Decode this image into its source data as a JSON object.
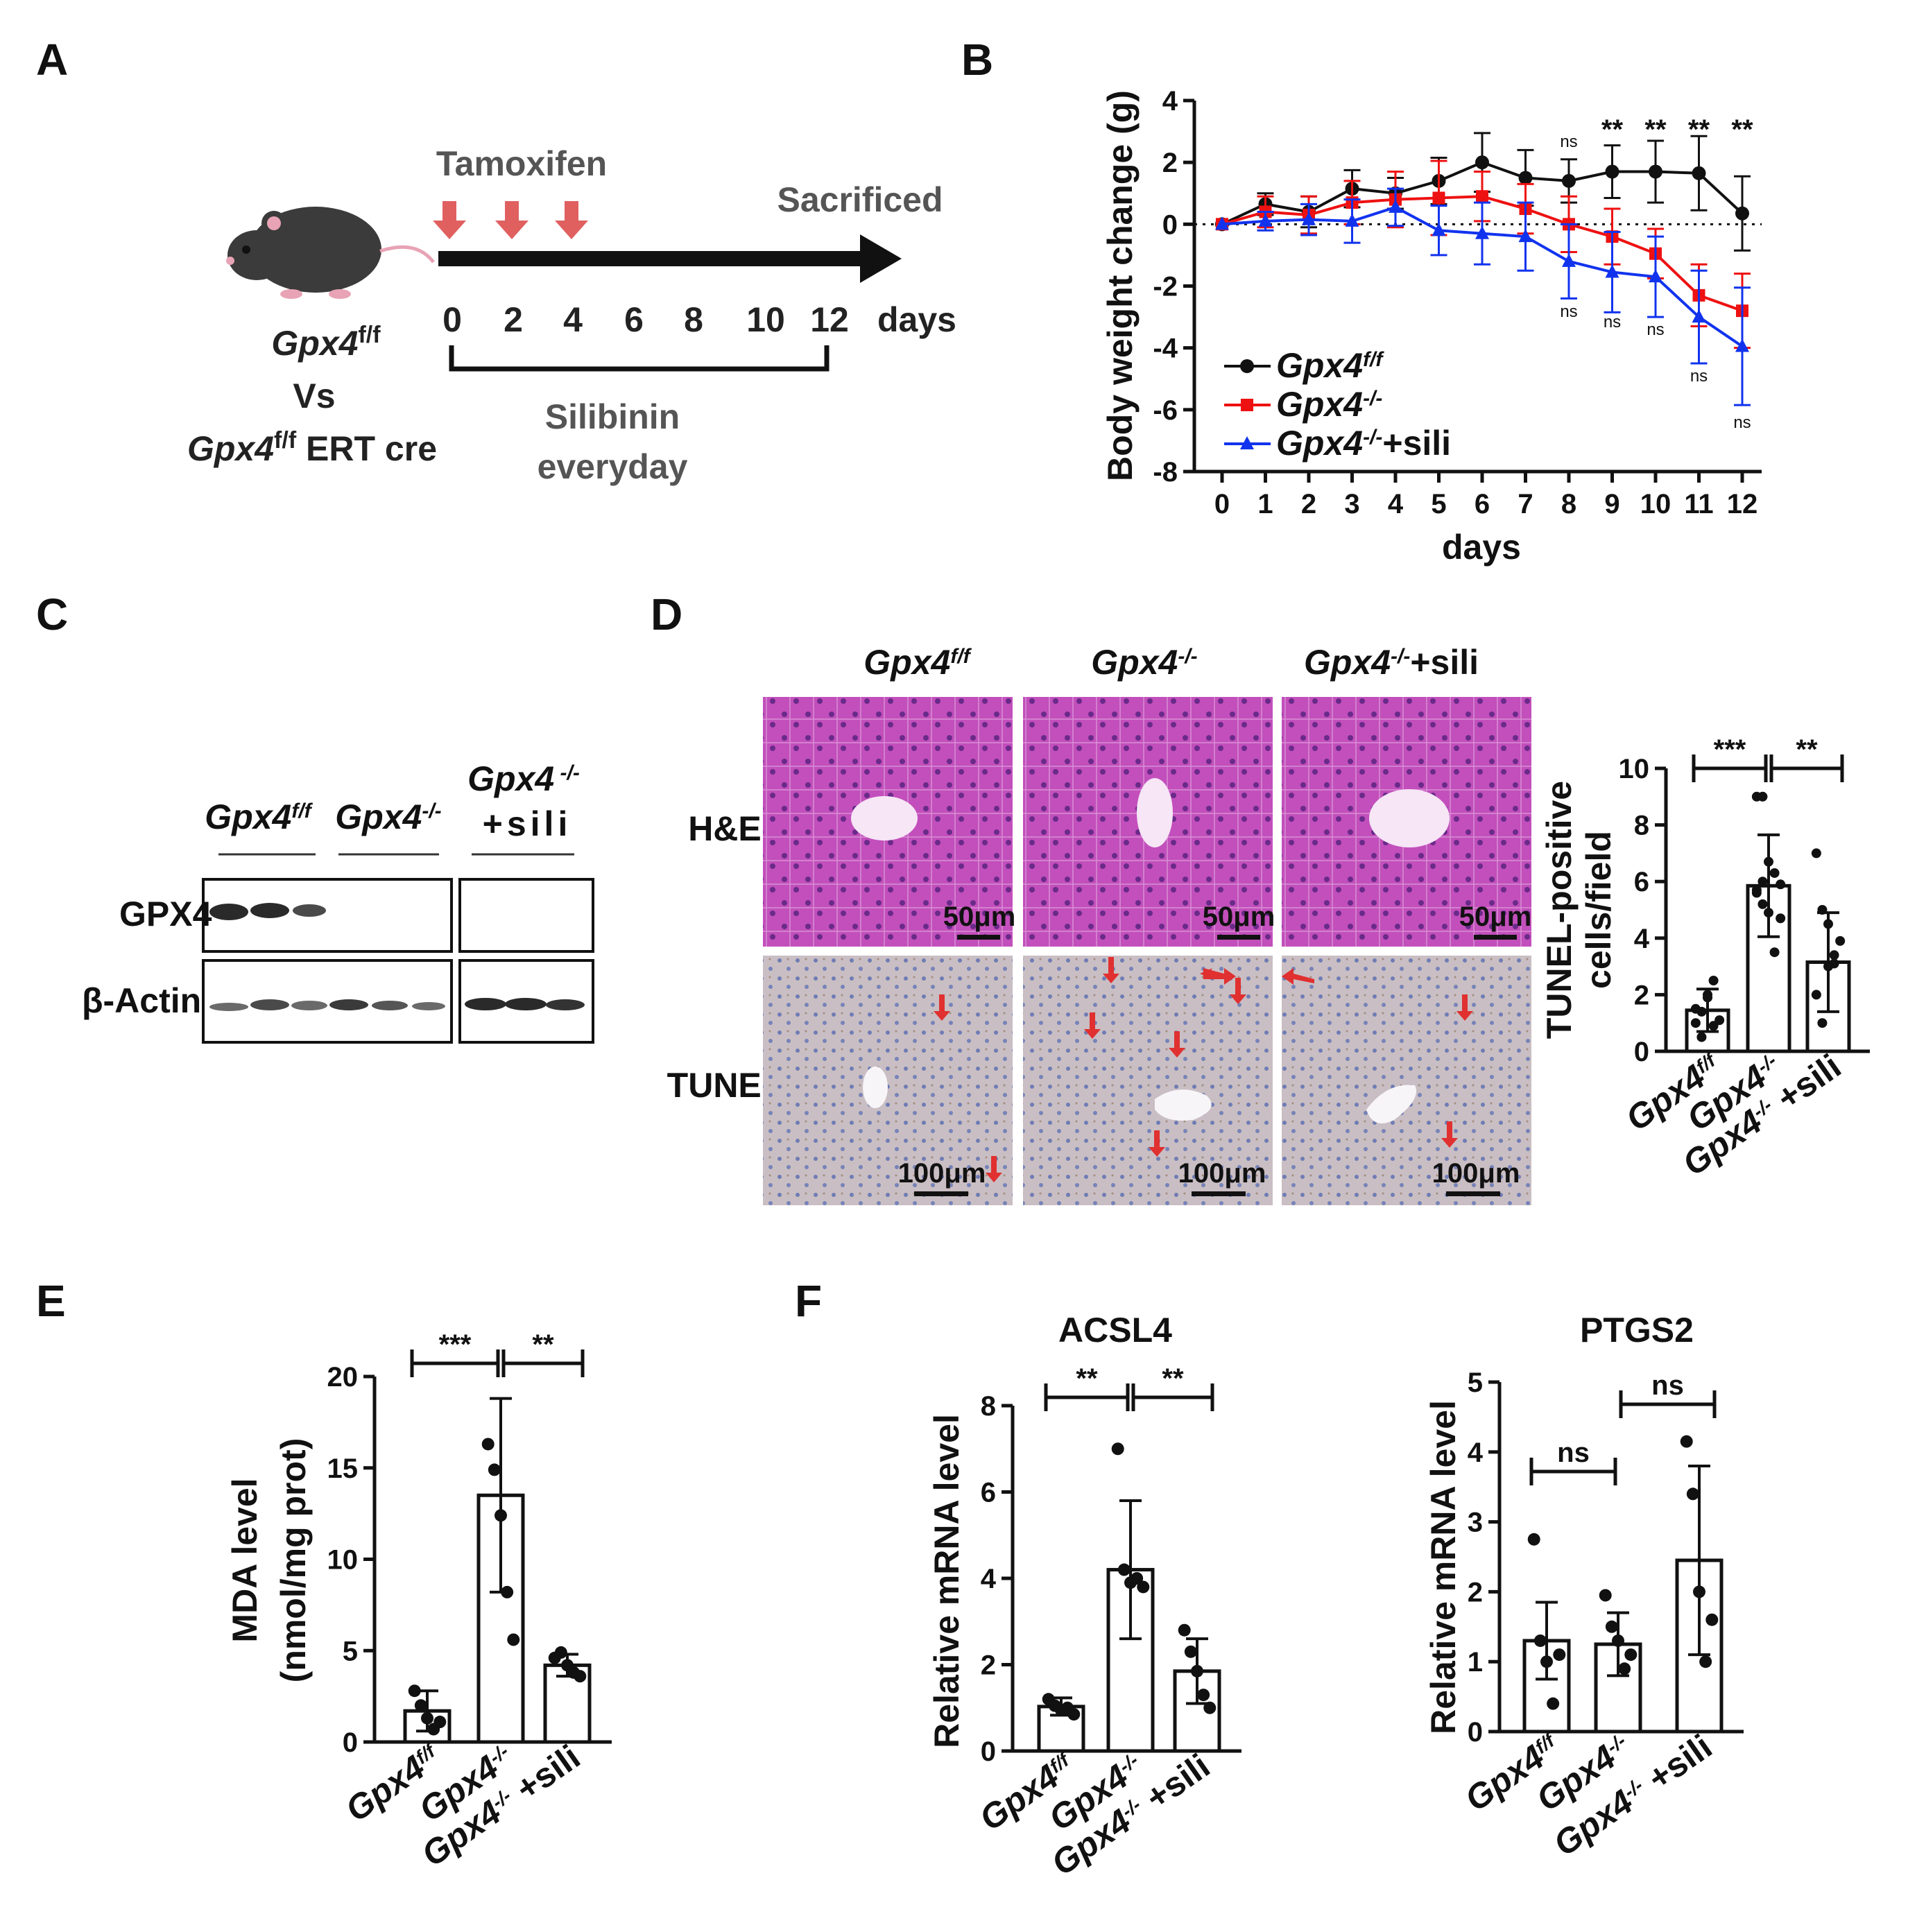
{
  "panel_letters": [
    "A",
    "B",
    "C",
    "D",
    "E",
    "F"
  ],
  "colors": {
    "black": "#111111",
    "red": "#ee1111",
    "blue": "#1133ee",
    "arrow_red": "#e03030",
    "he_bg": "#c04ab8",
    "tunel_bg": "#c8bfc6"
  },
  "schematic": {
    "mouse_icon": "mouse-icon",
    "tamoxifen": "Tamoxifen",
    "sacrificed": "Sacrificed",
    "days_ticks": [
      "0",
      "2",
      "4",
      "6",
      "8",
      "10",
      "12"
    ],
    "days_word": "days",
    "silibinin_1": "Silibinin",
    "silibinin_2": "everyday",
    "geno_1_main": "Gpx4",
    "geno_1_sup": "f/f",
    "vs": "Vs",
    "geno_2_main": "Gpx4",
    "geno_2_sup": "f/f",
    "geno_2_suffix": " ERT cre"
  },
  "western": {
    "labels": [
      {
        "main": "Gpx4",
        "sup": "f/f",
        "suffix": ""
      },
      {
        "main": "Gpx4",
        "sup": "-/-",
        "suffix": ""
      },
      {
        "main": "Gpx4",
        "sup": " -/-",
        "suffix": ""
      }
    ],
    "label_sili": "+sili",
    "row_gpx4": "GPX4",
    "row_actin": "β-Actin"
  },
  "histology": {
    "col_headers": [
      {
        "main": "Gpx4",
        "sup": "f/f",
        "suffix": ""
      },
      {
        "main": "Gpx4",
        "sup": "-/-",
        "suffix": ""
      },
      {
        "main": "Gpx4",
        "sup": "-/-",
        "suffix": "+sili"
      }
    ],
    "row_he": "H&E",
    "row_tunel": "TUNEL",
    "scale_he": "50μm",
    "scale_tunel": "100μm"
  },
  "legend": [
    {
      "main": "Gpx4",
      "sup": "f/f",
      "suffix": ""
    },
    {
      "main": "Gpx4",
      "sup": "-/-",
      "suffix": ""
    },
    {
      "main": "Gpx4",
      "sup": "-/-",
      "suffix": "+sili"
    }
  ],
  "group_labels": [
    {
      "main": "Gpx4",
      "sup": "f/f",
      "suffix": ""
    },
    {
      "main": "Gpx4",
      "sup": "-/-",
      "suffix": ""
    },
    {
      "main": "Gpx4",
      "sup": "-/-",
      "suffix": " +sili"
    }
  ],
  "chart_data": [
    {
      "id": "B",
      "type": "line",
      "xlabel": "days",
      "ylabel": "Body weight change (g)",
      "x": [
        0,
        1,
        2,
        3,
        4,
        5,
        6,
        7,
        8,
        9,
        10,
        11,
        12
      ],
      "ylim": [
        -8,
        4
      ],
      "yticks": [
        -8,
        -6,
        -4,
        -2,
        0,
        2,
        4
      ],
      "series": [
        {
          "name": "Gpx4f/f",
          "color": "#111111",
          "marker": "circle",
          "values": [
            0,
            0.65,
            0.4,
            1.15,
            1.0,
            1.4,
            2.0,
            1.5,
            1.4,
            1.7,
            1.7,
            1.65,
            0.35
          ],
          "errors": [
            0,
            0.35,
            0.5,
            0.6,
            0.5,
            0.75,
            0.95,
            0.9,
            0.7,
            0.85,
            1.0,
            1.2,
            1.2
          ]
        },
        {
          "name": "Gpx4-/-",
          "color": "#ee1111",
          "marker": "square",
          "values": [
            0,
            0.4,
            0.3,
            0.7,
            0.8,
            0.85,
            0.9,
            0.5,
            0.0,
            -0.4,
            -0.95,
            -2.3,
            -2.8
          ],
          "errors": [
            0,
            0.5,
            0.6,
            0.7,
            0.9,
            1.2,
            0.8,
            0.8,
            0.9,
            0.9,
            0.8,
            1.0,
            1.2
          ]
        },
        {
          "name": "Gpx4-/-+sili",
          "color": "#1133ee",
          "marker": "triangle",
          "values": [
            0,
            0.1,
            0.15,
            0.1,
            0.55,
            -0.2,
            -0.3,
            -0.4,
            -1.2,
            -1.55,
            -1.7,
            -3.0,
            -3.95
          ],
          "errors": [
            0,
            0.3,
            0.5,
            0.7,
            0.6,
            0.8,
            1.0,
            1.1,
            1.2,
            1.3,
            1.3,
            1.5,
            1.9
          ]
        }
      ],
      "annotations_top": [
        {
          "x": 8,
          "text": "ns"
        },
        {
          "x": 9,
          "text": "**"
        },
        {
          "x": 10,
          "text": "**"
        },
        {
          "x": 11,
          "text": "**"
        },
        {
          "x": 12,
          "text": "**"
        }
      ],
      "annotations_bottom": [
        {
          "x": 8,
          "text": "ns"
        },
        {
          "x": 9,
          "text": "ns"
        },
        {
          "x": 10,
          "text": "ns"
        },
        {
          "x": 11,
          "text": "ns"
        },
        {
          "x": 12,
          "text": "ns"
        }
      ]
    },
    {
      "id": "D-bar",
      "type": "bar",
      "ylabel_1": "TUNEL-positive",
      "ylabel_2": "cells/field",
      "ylim": [
        0,
        10
      ],
      "yticks": [
        0,
        2,
        4,
        6,
        8,
        10
      ],
      "values": [
        1.45,
        5.85,
        3.15
      ],
      "errors": [
        0.75,
        1.8,
        1.75
      ],
      "points": [
        [
          1.0,
          1.4,
          2.0,
          2.5,
          1.1,
          1.5,
          0.5,
          1.9,
          0.9
        ],
        [
          9.0,
          9.0,
          6.7,
          6.3,
          5.9,
          5.6,
          5.2,
          4.9,
          3.5,
          4.7,
          5.7,
          6.0
        ],
        [
          7.0,
          5.0,
          4.5,
          3.1,
          3.9,
          2.0,
          1.0,
          3.0,
          3.4
        ]
      ],
      "significance": [
        {
          "from": 0,
          "to": 1,
          "text": "***"
        },
        {
          "from": 1,
          "to": 2,
          "text": "**"
        }
      ]
    },
    {
      "id": "E",
      "type": "bar",
      "ylabel_1": "MDA level",
      "ylabel_2": "(nmol/mg prot)",
      "ylim": [
        0,
        20
      ],
      "yticks": [
        0,
        5,
        10,
        15,
        20
      ],
      "values": [
        1.7,
        13.5,
        4.2
      ],
      "errors": [
        1.1,
        5.3,
        0.6
      ],
      "points": [
        [
          2.8,
          2.0,
          1.3,
          0.7,
          1.1
        ],
        [
          16.3,
          14.9,
          12.4,
          8.2,
          5.6
        ],
        [
          4.6,
          4.9,
          4.2,
          3.8,
          3.6
        ]
      ],
      "significance": [
        {
          "from": 0,
          "to": 1,
          "text": "***"
        },
        {
          "from": 1,
          "to": 2,
          "text": "**"
        }
      ]
    },
    {
      "id": "F-ACSL4",
      "type": "bar",
      "title": "ACSL4",
      "ylabel": "Relative mRNA level",
      "ylim": [
        0,
        8
      ],
      "yticks": [
        0,
        2,
        4,
        6,
        8
      ],
      "values": [
        1.03,
        4.2,
        1.85
      ],
      "errors": [
        0.2,
        1.6,
        0.75
      ],
      "points": [
        [
          1.2,
          1.05,
          0.95,
          1.0,
          0.85
        ],
        [
          7.0,
          4.2,
          3.9,
          4.0,
          3.8
        ],
        [
          2.8,
          2.3,
          1.85,
          1.3,
          1.0
        ]
      ],
      "significance": [
        {
          "from": 0,
          "to": 1,
          "text": "**"
        },
        {
          "from": 1,
          "to": 2,
          "text": "**"
        }
      ]
    },
    {
      "id": "F-PTGS2",
      "type": "bar",
      "title": "PTGS2",
      "ylabel": "Relative mRNA level",
      "ylim": [
        0,
        5
      ],
      "yticks": [
        0,
        1,
        2,
        3,
        4,
        5
      ],
      "values": [
        1.3,
        1.25,
        2.45
      ],
      "errors": [
        0.55,
        0.45,
        1.35
      ],
      "points": [
        [
          2.75,
          1.3,
          1.0,
          0.4,
          1.1
        ],
        [
          1.95,
          1.5,
          1.3,
          0.9,
          1.1
        ],
        [
          4.15,
          3.4,
          2.0,
          1.0,
          1.6
        ]
      ],
      "significance": [
        {
          "from": 0,
          "to": 1,
          "text": "ns"
        },
        {
          "from": 1,
          "to": 2,
          "text": "ns"
        }
      ]
    }
  ]
}
